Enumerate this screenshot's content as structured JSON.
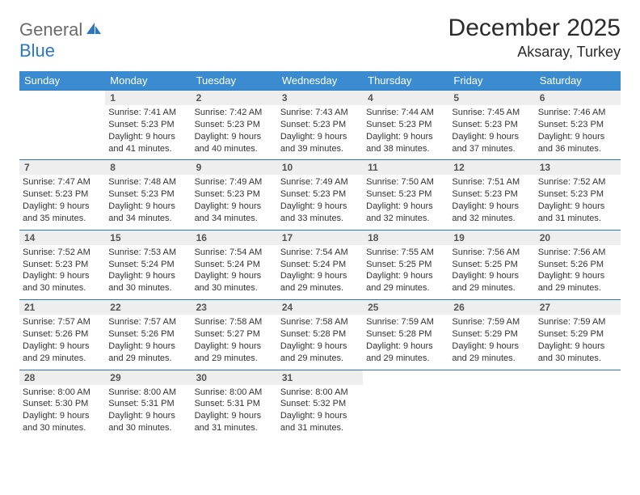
{
  "brand": {
    "part1": "General",
    "part2": "Blue"
  },
  "title": "December 2025",
  "location": "Aksaray, Turkey",
  "colors": {
    "header_bg": "#3b8bd0",
    "header_text": "#ffffff",
    "rule": "#2b77c0",
    "daynum_bg": "#eeeeee",
    "body_text": "#333333",
    "logo_gray": "#6b6b6b",
    "logo_blue": "#2b77c0"
  },
  "weekdays": [
    "Sunday",
    "Monday",
    "Tuesday",
    "Wednesday",
    "Thursday",
    "Friday",
    "Saturday"
  ],
  "first_weekday_index": 1,
  "days": [
    {
      "n": 1,
      "sr": "7:41 AM",
      "ss": "5:23 PM",
      "dl": "9 hours and 41 minutes."
    },
    {
      "n": 2,
      "sr": "7:42 AM",
      "ss": "5:23 PM",
      "dl": "9 hours and 40 minutes."
    },
    {
      "n": 3,
      "sr": "7:43 AM",
      "ss": "5:23 PM",
      "dl": "9 hours and 39 minutes."
    },
    {
      "n": 4,
      "sr": "7:44 AM",
      "ss": "5:23 PM",
      "dl": "9 hours and 38 minutes."
    },
    {
      "n": 5,
      "sr": "7:45 AM",
      "ss": "5:23 PM",
      "dl": "9 hours and 37 minutes."
    },
    {
      "n": 6,
      "sr": "7:46 AM",
      "ss": "5:23 PM",
      "dl": "9 hours and 36 minutes."
    },
    {
      "n": 7,
      "sr": "7:47 AM",
      "ss": "5:23 PM",
      "dl": "9 hours and 35 minutes."
    },
    {
      "n": 8,
      "sr": "7:48 AM",
      "ss": "5:23 PM",
      "dl": "9 hours and 34 minutes."
    },
    {
      "n": 9,
      "sr": "7:49 AM",
      "ss": "5:23 PM",
      "dl": "9 hours and 34 minutes."
    },
    {
      "n": 10,
      "sr": "7:49 AM",
      "ss": "5:23 PM",
      "dl": "9 hours and 33 minutes."
    },
    {
      "n": 11,
      "sr": "7:50 AM",
      "ss": "5:23 PM",
      "dl": "9 hours and 32 minutes."
    },
    {
      "n": 12,
      "sr": "7:51 AM",
      "ss": "5:23 PM",
      "dl": "9 hours and 32 minutes."
    },
    {
      "n": 13,
      "sr": "7:52 AM",
      "ss": "5:23 PM",
      "dl": "9 hours and 31 minutes."
    },
    {
      "n": 14,
      "sr": "7:52 AM",
      "ss": "5:23 PM",
      "dl": "9 hours and 30 minutes."
    },
    {
      "n": 15,
      "sr": "7:53 AM",
      "ss": "5:24 PM",
      "dl": "9 hours and 30 minutes."
    },
    {
      "n": 16,
      "sr": "7:54 AM",
      "ss": "5:24 PM",
      "dl": "9 hours and 30 minutes."
    },
    {
      "n": 17,
      "sr": "7:54 AM",
      "ss": "5:24 PM",
      "dl": "9 hours and 29 minutes."
    },
    {
      "n": 18,
      "sr": "7:55 AM",
      "ss": "5:25 PM",
      "dl": "9 hours and 29 minutes."
    },
    {
      "n": 19,
      "sr": "7:56 AM",
      "ss": "5:25 PM",
      "dl": "9 hours and 29 minutes."
    },
    {
      "n": 20,
      "sr": "7:56 AM",
      "ss": "5:26 PM",
      "dl": "9 hours and 29 minutes."
    },
    {
      "n": 21,
      "sr": "7:57 AM",
      "ss": "5:26 PM",
      "dl": "9 hours and 29 minutes."
    },
    {
      "n": 22,
      "sr": "7:57 AM",
      "ss": "5:26 PM",
      "dl": "9 hours and 29 minutes."
    },
    {
      "n": 23,
      "sr": "7:58 AM",
      "ss": "5:27 PM",
      "dl": "9 hours and 29 minutes."
    },
    {
      "n": 24,
      "sr": "7:58 AM",
      "ss": "5:28 PM",
      "dl": "9 hours and 29 minutes."
    },
    {
      "n": 25,
      "sr": "7:59 AM",
      "ss": "5:28 PM",
      "dl": "9 hours and 29 minutes."
    },
    {
      "n": 26,
      "sr": "7:59 AM",
      "ss": "5:29 PM",
      "dl": "9 hours and 29 minutes."
    },
    {
      "n": 27,
      "sr": "7:59 AM",
      "ss": "5:29 PM",
      "dl": "9 hours and 30 minutes."
    },
    {
      "n": 28,
      "sr": "8:00 AM",
      "ss": "5:30 PM",
      "dl": "9 hours and 30 minutes."
    },
    {
      "n": 29,
      "sr": "8:00 AM",
      "ss": "5:31 PM",
      "dl": "9 hours and 30 minutes."
    },
    {
      "n": 30,
      "sr": "8:00 AM",
      "ss": "5:31 PM",
      "dl": "9 hours and 31 minutes."
    },
    {
      "n": 31,
      "sr": "8:00 AM",
      "ss": "5:32 PM",
      "dl": "9 hours and 31 minutes."
    }
  ],
  "labels": {
    "sunrise": "Sunrise:",
    "sunset": "Sunset:",
    "daylight": "Daylight:"
  }
}
